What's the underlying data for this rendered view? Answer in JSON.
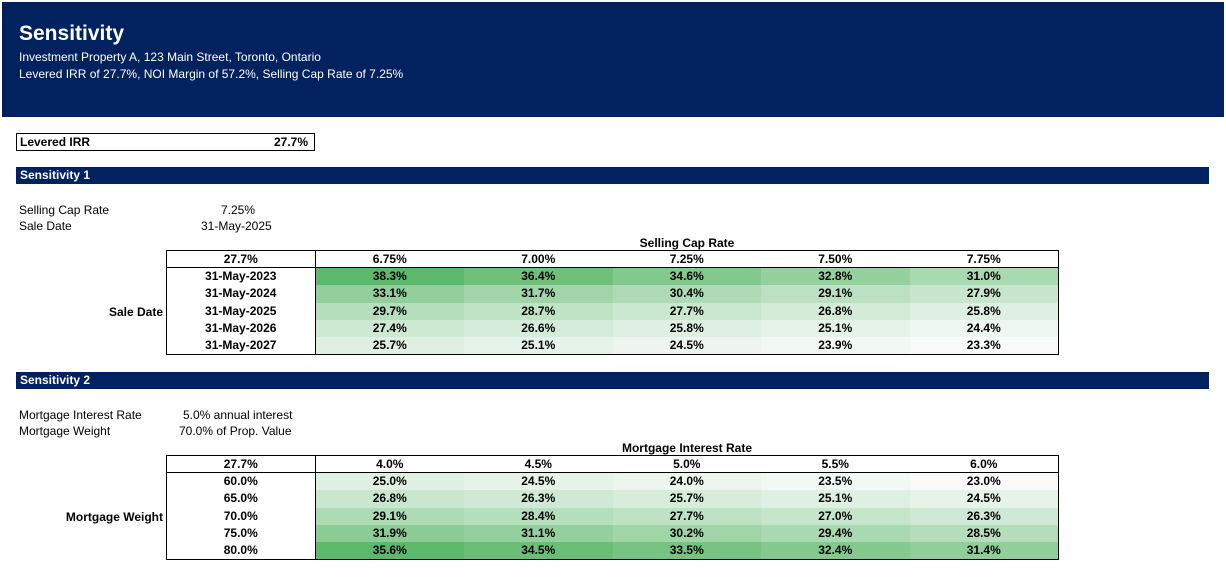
{
  "header": {
    "title": "Sensitivity",
    "subtitle1": "Investment Property A, 123 Main Street, Toronto, Ontario",
    "subtitle2": "Levered IRR of 27.7%, NOI Margin of 57.2%, Selling Cap Rate of 7.25%"
  },
  "irr_box": {
    "label": "Levered IRR",
    "value": "27.7%"
  },
  "sensitivity1": {
    "title": "Sensitivity 1",
    "params": [
      {
        "label": "Selling Cap Rate",
        "value": "7.25%"
      },
      {
        "label": "Sale Date",
        "value": "31-May-2025"
      }
    ],
    "column_axis_title": "Selling Cap Rate",
    "row_axis_title": "Sale Date",
    "corner": "27.7%",
    "columns": [
      "6.75%",
      "7.00%",
      "7.25%",
      "7.50%",
      "7.75%"
    ],
    "rows": [
      {
        "label": "31-May-2023",
        "values": [
          "38.3%",
          "36.4%",
          "34.6%",
          "32.8%",
          "31.0%"
        ]
      },
      {
        "label": "31-May-2024",
        "values": [
          "33.1%",
          "31.7%",
          "30.4%",
          "29.1%",
          "27.9%"
        ]
      },
      {
        "label": "31-May-2025",
        "values": [
          "29.7%",
          "28.7%",
          "27.7%",
          "26.8%",
          "25.8%"
        ]
      },
      {
        "label": "31-May-2026",
        "values": [
          "27.4%",
          "26.6%",
          "25.8%",
          "25.1%",
          "24.4%"
        ]
      },
      {
        "label": "31-May-2027",
        "values": [
          "25.7%",
          "25.1%",
          "24.5%",
          "23.9%",
          "23.3%"
        ]
      }
    ]
  },
  "sensitivity2": {
    "title": "Sensitivity 2",
    "params": [
      {
        "label": "Mortgage Interest Rate",
        "value": "5.0% annual interest"
      },
      {
        "label": "Mortgage Weight",
        "value": "70.0% of Prop. Value"
      }
    ],
    "column_axis_title": "Mortgage Interest Rate",
    "row_axis_title": "Mortgage Weight",
    "corner": "27.7%",
    "columns": [
      "4.0%",
      "4.5%",
      "5.0%",
      "5.5%",
      "6.0%"
    ],
    "rows": [
      {
        "label": "60.0%",
        "values": [
          "25.0%",
          "24.5%",
          "24.0%",
          "23.5%",
          "23.0%"
        ]
      },
      {
        "label": "65.0%",
        "values": [
          "26.8%",
          "26.3%",
          "25.7%",
          "25.1%",
          "24.5%"
        ]
      },
      {
        "label": "70.0%",
        "values": [
          "29.1%",
          "28.4%",
          "27.7%",
          "27.0%",
          "26.3%"
        ]
      },
      {
        "label": "75.0%",
        "values": [
          "31.9%",
          "31.1%",
          "30.2%",
          "29.4%",
          "28.5%"
        ]
      },
      {
        "label": "80.0%",
        "values": [
          "35.6%",
          "34.5%",
          "33.5%",
          "32.4%",
          "31.4%"
        ]
      }
    ]
  },
  "colors": {
    "header_bg": "#01215f",
    "heat_low": "#f8fbf9",
    "heat_high": "#5cb86a"
  }
}
